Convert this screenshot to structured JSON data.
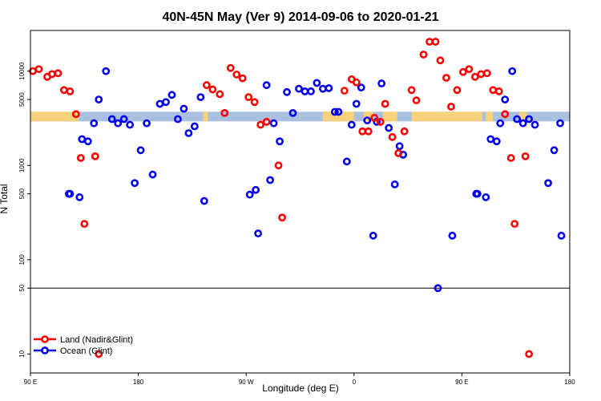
{
  "chart_data": {
    "type": "scatter",
    "title": "40N-45N May (Ver 9)   2014-09-06 to 2020-01-21",
    "xlabel": "Longitude (deg E)",
    "ylabel": "N Total",
    "x_scale": "linear",
    "y_scale": "log",
    "xlim": [
      90,
      540
    ],
    "ylim": [
      6.3,
      27000
    ],
    "x_ticks": [
      {
        "value": 90,
        "label": "90 E"
      },
      {
        "value": 180,
        "label": "180"
      },
      {
        "value": 270,
        "label": "90 W"
      },
      {
        "value": 360,
        "label": "0"
      },
      {
        "value": 450,
        "label": "90 E"
      },
      {
        "value": 540,
        "label": "180"
      }
    ],
    "y_ticks": [
      {
        "value": 10,
        "label": "10"
      },
      {
        "value": 50,
        "label": "50"
      },
      {
        "value": 100,
        "label": "100"
      },
      {
        "value": 500,
        "label": "500"
      },
      {
        "value": 1000,
        "label": "1000"
      },
      {
        "value": 5000,
        "label": "5000"
      },
      {
        "value": 10000,
        "label": "10000"
      }
    ],
    "reference_line": {
      "value": 50
    },
    "land_ocean_band": {
      "y": 3300,
      "ocean_color": "#a9c0e0",
      "land_color": "#f7d27a",
      "land_segments": [
        [
          90,
          130
        ],
        [
          234,
          238
        ],
        [
          334,
          360
        ],
        [
          368,
          376
        ],
        [
          384,
          396
        ],
        [
          408,
          467
        ],
        [
          470,
          476
        ],
        [
          498,
          504
        ]
      ]
    },
    "series": [
      {
        "name": "Land (Nadir&Glint)",
        "color": "#ff0000",
        "points": [
          [
            92,
            10000
          ],
          [
            97,
            10500
          ],
          [
            104,
            8700
          ],
          [
            108,
            9300
          ],
          [
            113,
            9500
          ],
          [
            118,
            6300
          ],
          [
            123,
            6100
          ],
          [
            128,
            3500
          ],
          [
            132,
            1200
          ],
          [
            135,
            240
          ],
          [
            144,
            1250
          ],
          [
            147,
            10
          ],
          [
            237,
            7100
          ],
          [
            242,
            6400
          ],
          [
            248,
            5700
          ],
          [
            252,
            3600
          ],
          [
            257,
            10800
          ],
          [
            262,
            9200
          ],
          [
            267,
            8400
          ],
          [
            272,
            5300
          ],
          [
            277,
            4700
          ],
          [
            282,
            2700
          ],
          [
            287,
            2900
          ],
          [
            297,
            1000
          ],
          [
            300,
            280
          ],
          [
            352,
            6200
          ],
          [
            358,
            8200
          ],
          [
            362,
            7600
          ],
          [
            367,
            2300
          ],
          [
            372,
            2300
          ],
          [
            377,
            3200
          ],
          [
            382,
            2900
          ],
          [
            386,
            4500
          ],
          [
            392,
            2000
          ],
          [
            397,
            1350
          ],
          [
            402,
            2300
          ],
          [
            408,
            6300
          ],
          [
            412,
            4900
          ],
          [
            418,
            15000
          ],
          [
            423,
            20500
          ],
          [
            428,
            20500
          ],
          [
            432,
            13000
          ],
          [
            437,
            8500
          ],
          [
            441,
            4200
          ],
          [
            446,
            6300
          ],
          [
            451,
            9800
          ],
          [
            456,
            10500
          ],
          [
            461,
            8700
          ],
          [
            466,
            9300
          ],
          [
            471,
            9500
          ],
          [
            476,
            6300
          ],
          [
            481,
            6100
          ],
          [
            486,
            3500
          ],
          [
            491,
            1200
          ],
          [
            494,
            240
          ],
          [
            503,
            1250
          ],
          [
            506,
            10
          ]
        ]
      },
      {
        "name": "Ocean (Glint)",
        "color": "#0000ee",
        "points": [
          [
            123,
            500
          ],
          [
            122,
            500
          ],
          [
            131,
            460
          ],
          [
            133,
            1900
          ],
          [
            138,
            1800
          ],
          [
            143,
            2800
          ],
          [
            147,
            5000
          ],
          [
            153,
            10000
          ],
          [
            158,
            3100
          ],
          [
            163,
            2800
          ],
          [
            168,
            3100
          ],
          [
            173,
            2700
          ],
          [
            177,
            650
          ],
          [
            182,
            1450
          ],
          [
            187,
            2800
          ],
          [
            192,
            800
          ],
          [
            198,
            4500
          ],
          [
            203,
            4700
          ],
          [
            208,
            5600
          ],
          [
            213,
            3100
          ],
          [
            218,
            4000
          ],
          [
            222,
            2200
          ],
          [
            227,
            2600
          ],
          [
            232,
            5300
          ],
          [
            235,
            420
          ],
          [
            273,
            490
          ],
          [
            278,
            550
          ],
          [
            280,
            190
          ],
          [
            287,
            7100
          ],
          [
            290,
            700
          ],
          [
            293,
            2800
          ],
          [
            298,
            1800
          ],
          [
            304,
            6000
          ],
          [
            309,
            3600
          ],
          [
            314,
            6500
          ],
          [
            319,
            6100
          ],
          [
            324,
            6100
          ],
          [
            329,
            7500
          ],
          [
            334,
            6500
          ],
          [
            339,
            6600
          ],
          [
            344,
            3700
          ],
          [
            347,
            3700
          ],
          [
            354,
            1100
          ],
          [
            358,
            2700
          ],
          [
            362,
            4500
          ],
          [
            366,
            6700
          ],
          [
            371,
            3000
          ],
          [
            376,
            180
          ],
          [
            379,
            2900
          ],
          [
            383,
            7400
          ],
          [
            389,
            2500
          ],
          [
            394,
            630
          ],
          [
            398,
            1600
          ],
          [
            401,
            1300
          ],
          [
            463,
            500
          ],
          [
            462,
            500
          ],
          [
            470,
            460
          ],
          [
            474,
            1900
          ],
          [
            479,
            1800
          ],
          [
            482,
            2800
          ],
          [
            486,
            5000
          ],
          [
            492,
            10000
          ],
          [
            496,
            3100
          ],
          [
            501,
            2800
          ],
          [
            506,
            3100
          ],
          [
            511,
            2700
          ],
          [
            522,
            650
          ],
          [
            527,
            1450
          ],
          [
            532,
            2800
          ],
          [
            533,
            180
          ],
          [
            442,
            180
          ],
          [
            430,
            50
          ]
        ]
      }
    ],
    "legend": {
      "position": "bottom-left",
      "entries": [
        "Land (Nadir&Glint)",
        "Ocean (Glint)"
      ]
    }
  }
}
